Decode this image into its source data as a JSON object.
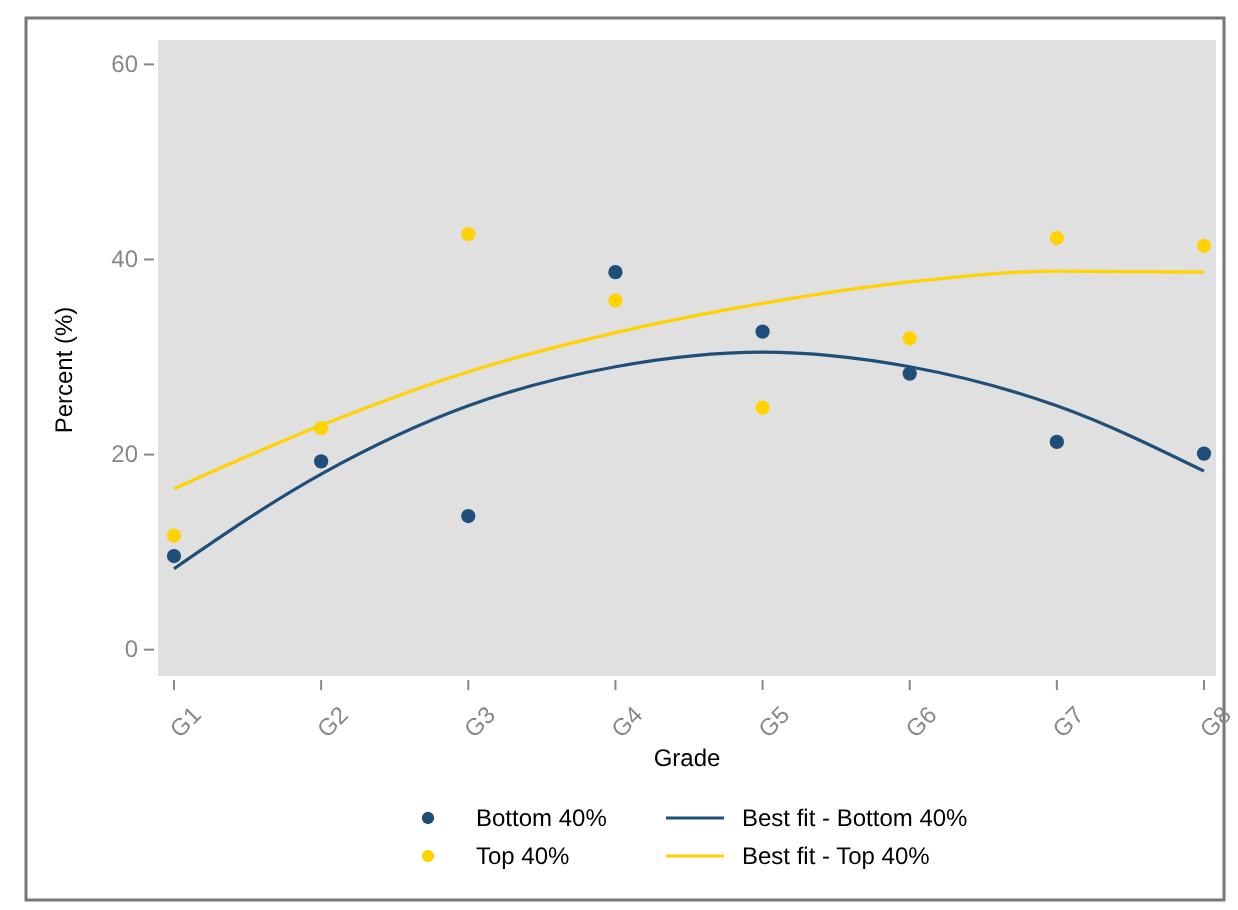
{
  "chart_data": {
    "type": "scatter",
    "xlabel": "Grade",
    "ylabel": "Percent (%)",
    "categories": [
      "G1",
      "G2",
      "G3",
      "G4",
      "G5",
      "G6",
      "G7",
      "G8"
    ],
    "series": [
      {
        "name": "Bottom 40%",
        "color": "#1f4e79",
        "marker": "circle",
        "values": [
          9.6,
          19.3,
          13.7,
          38.7,
          32.6,
          28.3,
          21.3,
          20.1
        ]
      },
      {
        "name": "Top 40%",
        "color": "#ffd200",
        "marker": "circle",
        "values": [
          11.7,
          22.7,
          42.6,
          35.8,
          24.8,
          31.9,
          42.2,
          41.4
        ]
      },
      {
        "name": "Best fit - Bottom 40%",
        "type": "line",
        "color": "#1f4e79",
        "marker": "none",
        "line_style": "solid",
        "values": [
          8.3,
          18,
          25,
          29,
          30.5,
          29,
          25,
          18.3
        ]
      },
      {
        "name": "Best fit - Top 40%",
        "type": "line",
        "color": "#ffd200",
        "marker": "none",
        "line_style": "solid",
        "values": [
          16.5,
          23,
          28.5,
          32.5,
          35.5,
          37.7,
          38.8,
          38.7
        ]
      }
    ],
    "ylim": [
      -2.7,
      62.5
    ],
    "yticks": [
      0,
      20,
      40,
      60
    ],
    "grid": false,
    "legend": "bottom"
  }
}
